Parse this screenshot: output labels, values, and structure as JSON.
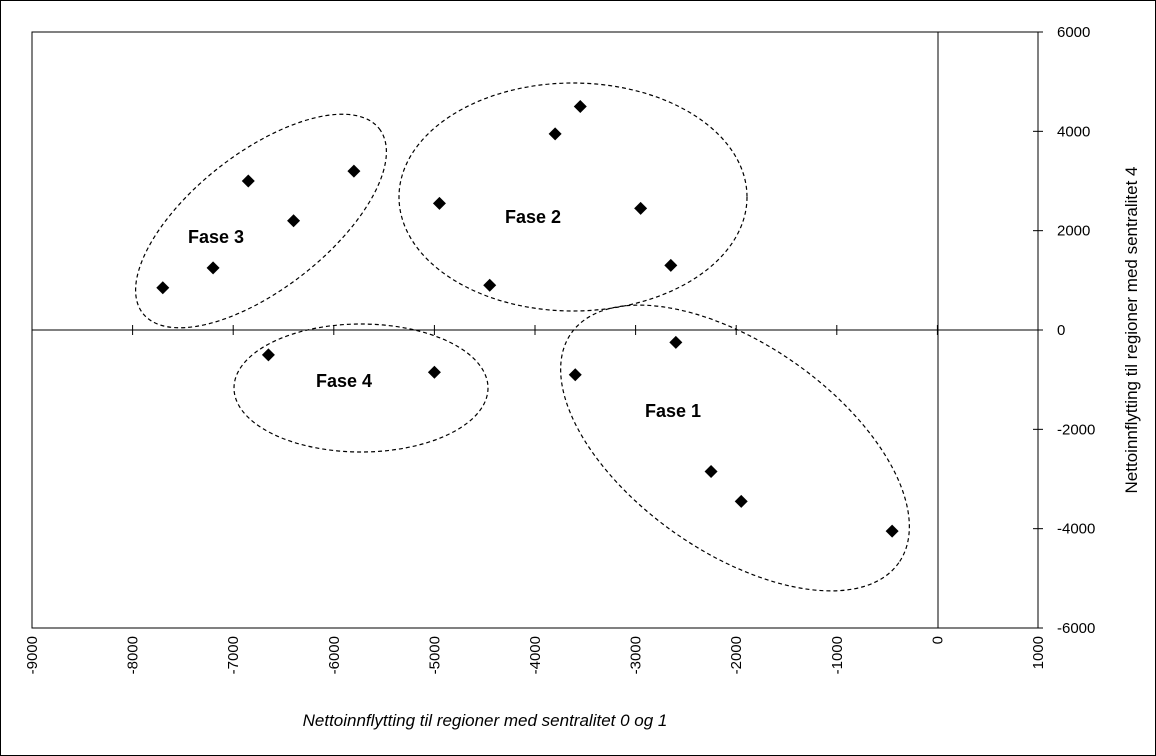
{
  "chart_data": {
    "type": "scatter",
    "title": "",
    "xlabel": "Nettoinnflytting til regioner med sentralitet 0 og 1",
    "ylabel": "Nettoinnflytting til regioner med sentralitet 4",
    "xlim": [
      -9000,
      1000
    ],
    "ylim": [
      -6000,
      6000
    ],
    "x_ticks": [
      "-9000",
      "-8000",
      "-7000",
      "-6000",
      "-5000",
      "-4000",
      "-3000",
      "-2000",
      "-1000",
      "0",
      "1000"
    ],
    "y_ticks": [
      "6000",
      "4000",
      "2000",
      "0",
      "-2000",
      "-4000",
      "-6000"
    ],
    "grid": false,
    "legend": "none",
    "marker": "diamond",
    "marker_color": "#000000",
    "points": [
      {
        "x": -2600,
        "y": -250
      },
      {
        "x": -3600,
        "y": -900
      },
      {
        "x": -2250,
        "y": -2850
      },
      {
        "x": -1950,
        "y": -3450
      },
      {
        "x": -450,
        "y": -4050
      },
      {
        "x": -3800,
        "y": 3950
      },
      {
        "x": -3550,
        "y": 4500
      },
      {
        "x": -4950,
        "y": 2550
      },
      {
        "x": -2950,
        "y": 2450
      },
      {
        "x": -4450,
        "y": 900
      },
      {
        "x": -2650,
        "y": 1300
      },
      {
        "x": -6850,
        "y": 3000
      },
      {
        "x": -5800,
        "y": 3200
      },
      {
        "x": -6400,
        "y": 2200
      },
      {
        "x": -7200,
        "y": 1250
      },
      {
        "x": -7700,
        "y": 850
      },
      {
        "x": -6650,
        "y": -500
      },
      {
        "x": -5000,
        "y": -850
      }
    ],
    "annotations": [
      {
        "text": "Fase 1",
        "x": -2300,
        "y": -1600
      },
      {
        "text": "Fase 2",
        "x": -3850,
        "y": 2300
      },
      {
        "text": "Fase 3",
        "x": -7150,
        "y": 1850
      },
      {
        "text": "Fase 4",
        "x": -5900,
        "y": -1000
      }
    ]
  }
}
